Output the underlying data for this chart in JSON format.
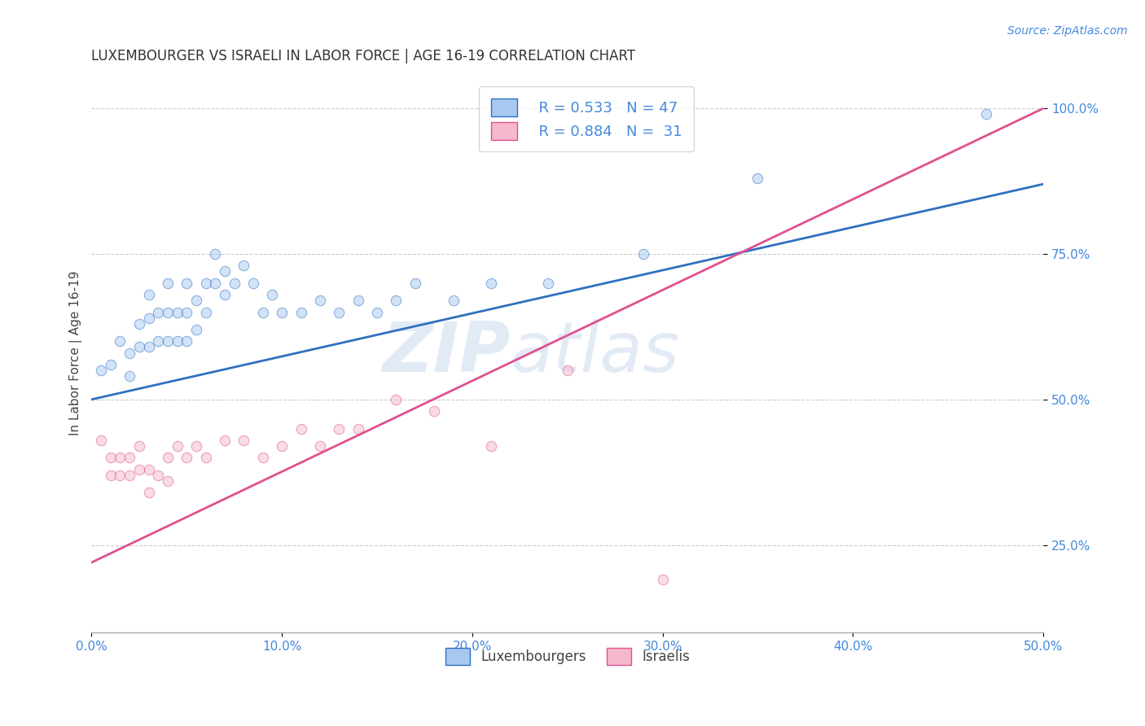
{
  "title": "LUXEMBOURGER VS ISRAELI IN LABOR FORCE | AGE 16-19 CORRELATION CHART",
  "source_text": "Source: ZipAtlas.com",
  "ylabel": "In Labor Force | Age 16-19",
  "xlim": [
    0.0,
    0.5
  ],
  "ylim": [
    0.1,
    1.06
  ],
  "xticks": [
    0.0,
    0.1,
    0.2,
    0.3,
    0.4,
    0.5
  ],
  "xtick_labels": [
    "0.0%",
    "10.0%",
    "20.0%",
    "30.0%",
    "40.0%",
    "50.0%"
  ],
  "yticks": [
    0.25,
    0.5,
    0.75,
    1.0
  ],
  "ytick_labels": [
    "25.0%",
    "50.0%",
    "75.0%",
    "100.0%"
  ],
  "legend_blue_r": "R = 0.533",
  "legend_blue_n": "N = 47",
  "legend_pink_r": "R = 0.884",
  "legend_pink_n": "N =  31",
  "blue_color": "#A8C8F0",
  "pink_color": "#F5B8CC",
  "blue_line_color": "#3070C0",
  "pink_line_color": "#E05090",
  "watermark_zip": "ZIP",
  "watermark_atlas": "atlas",
  "blue_scatter_x": [
    0.005,
    0.01,
    0.015,
    0.02,
    0.02,
    0.025,
    0.025,
    0.03,
    0.03,
    0.03,
    0.035,
    0.035,
    0.04,
    0.04,
    0.04,
    0.045,
    0.045,
    0.05,
    0.05,
    0.05,
    0.055,
    0.055,
    0.06,
    0.06,
    0.065,
    0.065,
    0.07,
    0.07,
    0.075,
    0.08,
    0.085,
    0.09,
    0.095,
    0.1,
    0.11,
    0.12,
    0.13,
    0.14,
    0.15,
    0.16,
    0.17,
    0.19,
    0.21,
    0.24,
    0.29,
    0.35,
    0.47
  ],
  "blue_scatter_y": [
    0.55,
    0.56,
    0.6,
    0.58,
    0.54,
    0.63,
    0.59,
    0.68,
    0.64,
    0.59,
    0.65,
    0.6,
    0.7,
    0.65,
    0.6,
    0.65,
    0.6,
    0.7,
    0.65,
    0.6,
    0.67,
    0.62,
    0.7,
    0.65,
    0.75,
    0.7,
    0.72,
    0.68,
    0.7,
    0.73,
    0.7,
    0.65,
    0.68,
    0.65,
    0.65,
    0.67,
    0.65,
    0.67,
    0.65,
    0.67,
    0.7,
    0.67,
    0.7,
    0.7,
    0.75,
    0.88,
    0.99
  ],
  "pink_scatter_x": [
    0.005,
    0.01,
    0.01,
    0.015,
    0.015,
    0.02,
    0.02,
    0.025,
    0.025,
    0.03,
    0.03,
    0.035,
    0.04,
    0.04,
    0.045,
    0.05,
    0.055,
    0.06,
    0.07,
    0.08,
    0.09,
    0.1,
    0.11,
    0.12,
    0.13,
    0.14,
    0.16,
    0.18,
    0.21,
    0.25,
    0.3
  ],
  "pink_scatter_y": [
    0.43,
    0.4,
    0.37,
    0.4,
    0.37,
    0.4,
    0.37,
    0.42,
    0.38,
    0.38,
    0.34,
    0.37,
    0.4,
    0.36,
    0.42,
    0.4,
    0.42,
    0.4,
    0.43,
    0.43,
    0.4,
    0.42,
    0.45,
    0.42,
    0.45,
    0.45,
    0.5,
    0.48,
    0.42,
    0.55,
    0.19
  ],
  "blue_line_x": [
    0.0,
    0.5
  ],
  "blue_line_y": [
    0.5,
    0.87
  ],
  "pink_line_x": [
    0.0,
    0.5
  ],
  "pink_line_y": [
    0.22,
    1.0
  ],
  "title_fontsize": 12,
  "axis_label_fontsize": 11,
  "tick_fontsize": 11,
  "scatter_size": 80,
  "scatter_alpha": 0.5,
  "background_color": "#ffffff",
  "grid_color": "#cccccc",
  "tick_color": "#4488DD",
  "title_color": "#333333",
  "ylabel_color": "#444444",
  "source_color": "#4488DD",
  "legend_text_color": "#4488DD"
}
